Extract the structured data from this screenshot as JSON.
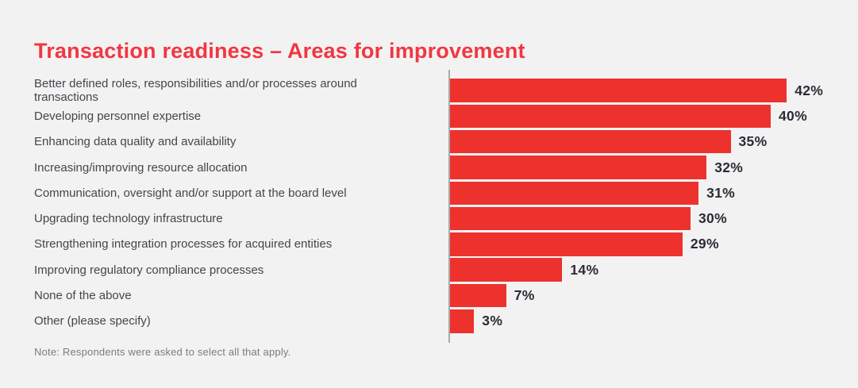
{
  "page": {
    "background_color": "#F2F2F2"
  },
  "title": {
    "text": "Transaction readiness – Areas for improvement",
    "color": "#F23642"
  },
  "note": {
    "text": "Note: Respondents were asked to select all that apply."
  },
  "chart_data": {
    "type": "bar",
    "orientation": "horizontal",
    "title": "Transaction readiness – Areas for improvement",
    "categories": [
      "Better defined roles, responsibilities and/or processes around transactions",
      "Developing personnel expertise",
      "Enhancing data quality and availability",
      "Increasing/improving resource allocation",
      "Communication, oversight and/or support at the board level",
      "Upgrading technology infrastructure",
      "Strengthening integration processes for acquired entities",
      "Improving regulatory compliance processes",
      "None of the above",
      "Other (please specify)"
    ],
    "values": [
      42,
      40,
      35,
      32,
      31,
      30,
      29,
      14,
      7,
      3
    ],
    "value_labels": [
      "42%",
      "40%",
      "35%",
      "32%",
      "31%",
      "30%",
      "29%",
      "14%",
      "7%",
      "3%"
    ],
    "unit": "%",
    "xlabel": "",
    "ylabel": "",
    "xlim": [
      0,
      42
    ],
    "grid": false,
    "legend": false,
    "bar_color": "#ED312D",
    "axis_line_color": "#A9A9AD",
    "value_label_color": "#2B2B35",
    "category_label_color": "#45454D"
  }
}
